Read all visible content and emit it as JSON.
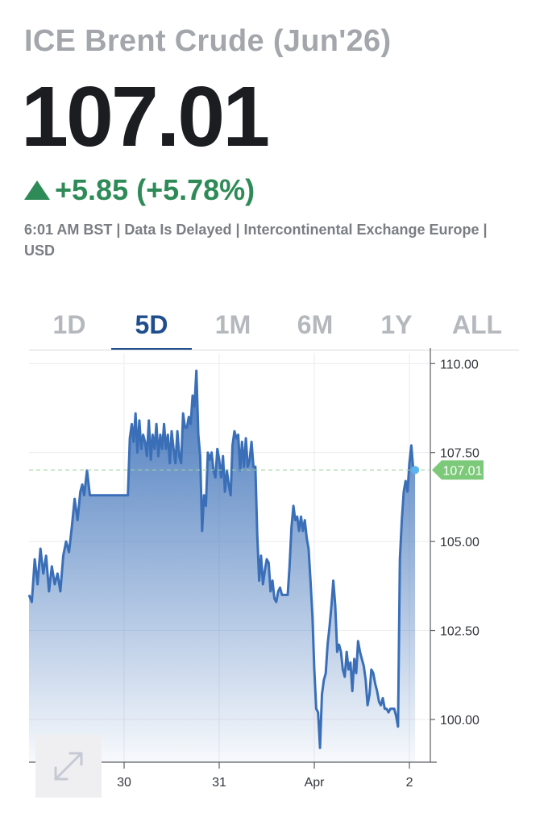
{
  "header": {
    "title": "ICE Brent Crude (Jun'26)",
    "price": "107.01",
    "change": "+5.85 (+5.78%)",
    "meta": "6:01 AM BST | Data Is Delayed | Intercontinental Exchange Europe | USD"
  },
  "colors": {
    "up": "#2e8b57",
    "line": "#3a6fb8",
    "active_tab": "#1f4e8c",
    "price_tag": "#7cc97a"
  },
  "tabs": [
    {
      "label": "1D",
      "active": false
    },
    {
      "label": "5D",
      "active": true
    },
    {
      "label": "1M",
      "active": false
    },
    {
      "label": "6M",
      "active": false
    },
    {
      "label": "1Y",
      "active": false
    },
    {
      "label": "ALL",
      "active": false
    }
  ],
  "chart_data": {
    "type": "area",
    "ylim": [
      98.8,
      110.3
    ],
    "y_ticks": [
      "110.00",
      "107.50",
      "105.00",
      "102.50",
      "100.00"
    ],
    "y_tick_values": [
      110.0,
      107.5,
      105.0,
      102.5,
      100.0
    ],
    "x_ticks": [
      "30",
      "31",
      "Apr",
      "2"
    ],
    "x_tick_positions": [
      1.0,
      2.0,
      3.0,
      4.0
    ],
    "xlim": [
      0.0,
      4.22
    ],
    "last_value": 107.01,
    "last_label": "107.01",
    "series": [
      {
        "x": [
          0.0,
          0.03,
          0.06,
          0.09,
          0.12,
          0.15,
          0.18,
          0.21,
          0.24,
          0.27,
          0.3,
          0.33,
          0.36,
          0.39,
          0.42,
          0.45,
          0.48,
          0.51,
          0.54,
          0.56,
          0.58,
          0.61,
          0.64,
          0.67,
          0.7,
          0.73,
          0.76,
          0.79,
          0.82,
          0.85,
          0.88,
          0.91,
          0.94,
          0.97,
          1.0,
          1.02,
          1.04,
          1.06,
          1.08,
          1.1,
          1.12,
          1.14,
          1.16,
          1.18,
          1.2,
          1.22,
          1.24,
          1.26,
          1.28,
          1.3,
          1.32,
          1.34,
          1.36,
          1.38,
          1.4,
          1.42,
          1.44,
          1.46,
          1.48,
          1.5,
          1.52,
          1.54,
          1.56,
          1.58,
          1.6,
          1.62,
          1.64,
          1.66,
          1.68,
          1.7,
          1.72,
          1.74,
          1.76,
          1.78,
          1.8,
          1.82,
          1.84,
          1.86,
          1.88,
          1.9,
          1.92,
          1.94,
          1.96,
          1.98,
          2.0,
          2.02,
          2.04,
          2.06,
          2.08,
          2.1,
          2.12,
          2.14,
          2.16,
          2.18,
          2.2,
          2.22,
          2.24,
          2.26,
          2.28,
          2.3,
          2.32,
          2.34,
          2.36,
          2.38,
          2.4,
          2.42,
          2.44,
          2.46,
          2.48,
          2.5,
          2.52,
          2.54,
          2.56,
          2.58,
          2.6,
          2.62,
          2.64,
          2.66,
          2.68,
          2.7,
          2.72,
          2.74,
          2.76,
          2.78,
          2.8,
          2.82,
          2.84,
          2.86,
          2.88,
          2.9,
          2.92,
          2.94,
          2.96,
          2.98,
          3.0,
          3.02,
          3.04,
          3.06,
          3.08,
          3.1,
          3.12,
          3.14,
          3.16,
          3.18,
          3.2,
          3.22,
          3.24,
          3.26,
          3.28,
          3.3,
          3.32,
          3.34,
          3.36,
          3.38,
          3.4,
          3.42,
          3.44,
          3.46,
          3.48,
          3.5,
          3.52,
          3.54,
          3.56,
          3.58,
          3.6,
          3.62,
          3.64,
          3.66,
          3.68,
          3.7,
          3.72,
          3.74,
          3.76,
          3.78,
          3.8,
          3.82,
          3.84,
          3.86,
          3.88,
          3.9,
          3.92,
          3.94,
          3.96,
          3.98,
          4.0,
          4.02,
          4.04,
          4.06
        ],
        "y": [
          103.5,
          103.3,
          104.5,
          103.8,
          104.8,
          104.1,
          104.6,
          103.6,
          104.3,
          103.8,
          104.1,
          103.6,
          104.6,
          105.0,
          104.7,
          105.4,
          106.2,
          105.6,
          106.4,
          106.6,
          106.3,
          107.0,
          106.3,
          106.3,
          106.3,
          106.3,
          106.3,
          106.3,
          106.3,
          106.3,
          106.3,
          106.3,
          106.3,
          106.3,
          106.3,
          106.3,
          106.3,
          107.9,
          108.3,
          107.8,
          108.6,
          107.5,
          108.4,
          107.6,
          108.0,
          107.8,
          107.4,
          108.4,
          107.3,
          108.0,
          107.6,
          108.3,
          107.4,
          108.0,
          107.6,
          108.3,
          107.6,
          108.0,
          107.2,
          108.1,
          107.6,
          107.2,
          108.1,
          107.4,
          107.2,
          108.6,
          108.2,
          108.2,
          108.5,
          108.3,
          109.1,
          108.8,
          109.8,
          108.0,
          107.4,
          105.3,
          106.3,
          106.0,
          107.5,
          107.3,
          107.5,
          107.0,
          106.8,
          107.6,
          107.3,
          106.8,
          107.4,
          106.4,
          107.0,
          106.6,
          106.3,
          107.7,
          108.1,
          107.9,
          108.0,
          107.0,
          107.8,
          107.1,
          107.9,
          107.1,
          107.3,
          107.8,
          107.1,
          107.1,
          105.2,
          103.9,
          104.6,
          103.8,
          104.2,
          104.5,
          104.4,
          103.6,
          103.9,
          103.4,
          103.3,
          103.6,
          103.7,
          103.5,
          103.5,
          103.5,
          103.5,
          104.3,
          105.4,
          106.0,
          105.6,
          105.7,
          105.3,
          105.7,
          105.3,
          105.6,
          105.1,
          104.8,
          103.9,
          102.9,
          101.4,
          100.3,
          100.2,
          99.2,
          100.7,
          101.1,
          101.3,
          102.1,
          102.6,
          103.2,
          103.9,
          103.2,
          101.9,
          102.1,
          101.9,
          101.4,
          101.2,
          101.9,
          101.4,
          101.6,
          100.8,
          101.7,
          101.3,
          102.2,
          101.9,
          101.7,
          101.5,
          101.1,
          100.4,
          100.7,
          101.4,
          101.3,
          101.0,
          100.8,
          100.5,
          100.4,
          100.6,
          100.3,
          100.3,
          100.2,
          100.3,
          100.3,
          100.3,
          100.1,
          99.8,
          104.5,
          105.6,
          106.4,
          106.7,
          106.4,
          107.2,
          107.7,
          107.01,
          107.01
        ]
      }
    ]
  }
}
